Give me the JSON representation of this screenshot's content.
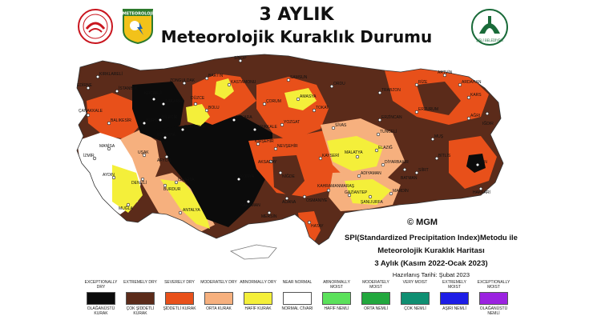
{
  "header": {
    "title_line1": "3 AYLIK",
    "title_line2": "Meteorolojik Kuraklık Durumu",
    "logo_center_text": "METEOROLOJİ",
    "logo_right_text": "ŞİŞLİ BELEDİYESİ"
  },
  "map": {
    "copyright": "© MGM",
    "info_line1": "SPI(Standardized Precipitation Index)Metodu ile",
    "info_line2": "Meteorolojik Kuraklık Haritası",
    "info_line3": "3 Aylık (Kasım 2022-Ocak 2023)",
    "prepared_date": "Hazırlanış Tarihi: Şubat 2023",
    "city_labels": [
      {
        "id": "kirklareli",
        "text": "KIRKLARELİ"
      },
      {
        "id": "edirne",
        "text": "EDİRNE"
      },
      {
        "id": "istanbul",
        "text": "İSTANBUL"
      },
      {
        "id": "zonguldak",
        "text": "ZONGULDAK"
      },
      {
        "id": "bartin",
        "text": "BARTIN"
      },
      {
        "id": "sinop",
        "text": "SİNOP"
      },
      {
        "id": "kastamonu",
        "text": "KASTAMONU"
      },
      {
        "id": "samsun",
        "text": "SAMSUN"
      },
      {
        "id": "amasya",
        "text": "AMASYA"
      },
      {
        "id": "ordu",
        "text": "ORDU"
      },
      {
        "id": "trabzon",
        "text": "TRABZON"
      },
      {
        "id": "rize",
        "text": "RİZE"
      },
      {
        "id": "artvin",
        "text": "ARTVİN"
      },
      {
        "id": "ardahan",
        "text": "ARDAHAN"
      },
      {
        "id": "kars",
        "text": "KARS"
      },
      {
        "id": "erzurum",
        "text": "ERZURUM"
      },
      {
        "id": "agri",
        "text": "AĞRI"
      },
      {
        "id": "igdir",
        "text": "IĞDIR"
      },
      {
        "id": "van",
        "text": "VAN"
      },
      {
        "id": "hakkari",
        "text": "HAKKARİ"
      },
      {
        "id": "bitlis",
        "text": "BİTLİS"
      },
      {
        "id": "mus",
        "text": "MUŞ"
      },
      {
        "id": "siirt",
        "text": "SİİRT"
      },
      {
        "id": "batman",
        "text": "BATMAN"
      },
      {
        "id": "diyarbakir",
        "text": "DİYARBAKIR"
      },
      {
        "id": "mardin",
        "text": "MARDİN"
      },
      {
        "id": "sanliurfa",
        "text": "ŞANLIURFA"
      },
      {
        "id": "adiyaman",
        "text": "ADIYAMAN"
      },
      {
        "id": "malatya",
        "text": "MALATYA"
      },
      {
        "id": "elazig",
        "text": "ELAZIĞ"
      },
      {
        "id": "tunceli",
        "text": "TUNCELİ"
      },
      {
        "id": "erzincan",
        "text": "ERZİNCAN"
      },
      {
        "id": "sivas",
        "text": "SİVAS"
      },
      {
        "id": "tokat",
        "text": "TOKAT"
      },
      {
        "id": "yozgat",
        "text": "YOZGAT"
      },
      {
        "id": "corum",
        "text": "ÇORUM"
      },
      {
        "id": "kirikkale",
        "text": "KIRIKKALE"
      },
      {
        "id": "ankara",
        "text": "ANKARA"
      },
      {
        "id": "bolu",
        "text": "BOLU"
      },
      {
        "id": "duzce",
        "text": "DÜZCE"
      },
      {
        "id": "sakarya",
        "text": "SAKARYA"
      },
      {
        "id": "kocaeli",
        "text": "KOCAELİ"
      },
      {
        "id": "bursa",
        "text": "BURSA"
      },
      {
        "id": "balikesir",
        "text": "BALIKESİR"
      },
      {
        "id": "canakkale",
        "text": "ÇANAKKALE"
      },
      {
        "id": "manisa",
        "text": "MANİSA"
      },
      {
        "id": "izmir",
        "text": "İZMİR"
      },
      {
        "id": "aydin",
        "text": "AYDIN"
      },
      {
        "id": "mugla",
        "text": "MUĞLA"
      },
      {
        "id": "denizli",
        "text": "DENİZLİ"
      },
      {
        "id": "burdur",
        "text": "BURDUR"
      },
      {
        "id": "antalya",
        "text": "ANTALYA"
      },
      {
        "id": "isparta",
        "text": "ISPARTA"
      },
      {
        "id": "konya",
        "text": "KONYA"
      },
      {
        "id": "karaman",
        "text": "KARAMAN"
      },
      {
        "id": "mersin",
        "text": "MERSİN"
      },
      {
        "id": "adana",
        "text": "ADANA"
      },
      {
        "id": "osmaniye",
        "text": "OSMANİYE"
      },
      {
        "id": "hatay",
        "text": "HATAY"
      },
      {
        "id": "kahramanmaras",
        "text": "KAHRAMANMARAŞ"
      },
      {
        "id": "gaziantep",
        "text": "GAZİANTEP"
      },
      {
        "id": "kayseri",
        "text": "KAYSERİ"
      },
      {
        "id": "nigde",
        "text": "NİĞDE"
      },
      {
        "id": "aksaray",
        "text": "AKSARAY"
      },
      {
        "id": "nevsehir",
        "text": "NEVŞEHİR"
      },
      {
        "id": "kirsehir",
        "text": "KIRŞEHİR"
      },
      {
        "id": "eskisehir",
        "text": "ESKİŞEHİR"
      },
      {
        "id": "kutahya",
        "text": "KÜTAHYA"
      },
      {
        "id": "afyon",
        "text": "AFYON"
      },
      {
        "id": "usak",
        "text": "UŞAK"
      },
      {
        "id": "bilecik",
        "text": "BİLECİK"
      }
    ]
  },
  "legend": [
    {
      "en": "EXCEPTIONALLY DRY",
      "tr": "OLAĞANÜSTÜ KURAK",
      "color": "#0b0b0b"
    },
    {
      "en": "EXTREMELY DRY",
      "tr": "ÇOK ŞİDDETLİ KURAK",
      "color": "#5b2b1a"
    },
    {
      "en": "SEVERELY DRY",
      "tr": "ŞİDDETLİ KURAK",
      "color": "#e8501a"
    },
    {
      "en": "MODERATELY DRY",
      "tr": "ORTA KURAK",
      "color": "#f6b07e"
    },
    {
      "en": "ABNORMALLY DRY",
      "tr": "HAFİF KURAK",
      "color": "#f4ef3a"
    },
    {
      "en": "NEAR NORMAL",
      "tr": "NORMAL CİVARI",
      "color": "#ffffff"
    },
    {
      "en": "ABNORMALLY MOIST",
      "tr": "HAFİF NEMLİ",
      "color": "#5be15b"
    },
    {
      "en": "MODERATELY MOIST",
      "tr": "ORTA NEMLİ",
      "color": "#22a83e"
    },
    {
      "en": "VERY MOIST",
      "tr": "ÇOK NEMLİ",
      "color": "#0f8f72"
    },
    {
      "en": "EXTREMELY MOIST",
      "tr": "AŞIRI NEMLİ",
      "color": "#1d1de6"
    },
    {
      "en": "EXCEPTIONALLY MOIST",
      "tr": "OLAĞANÜSTÜ NEMLİ",
      "color": "#9b22e0"
    }
  ]
}
